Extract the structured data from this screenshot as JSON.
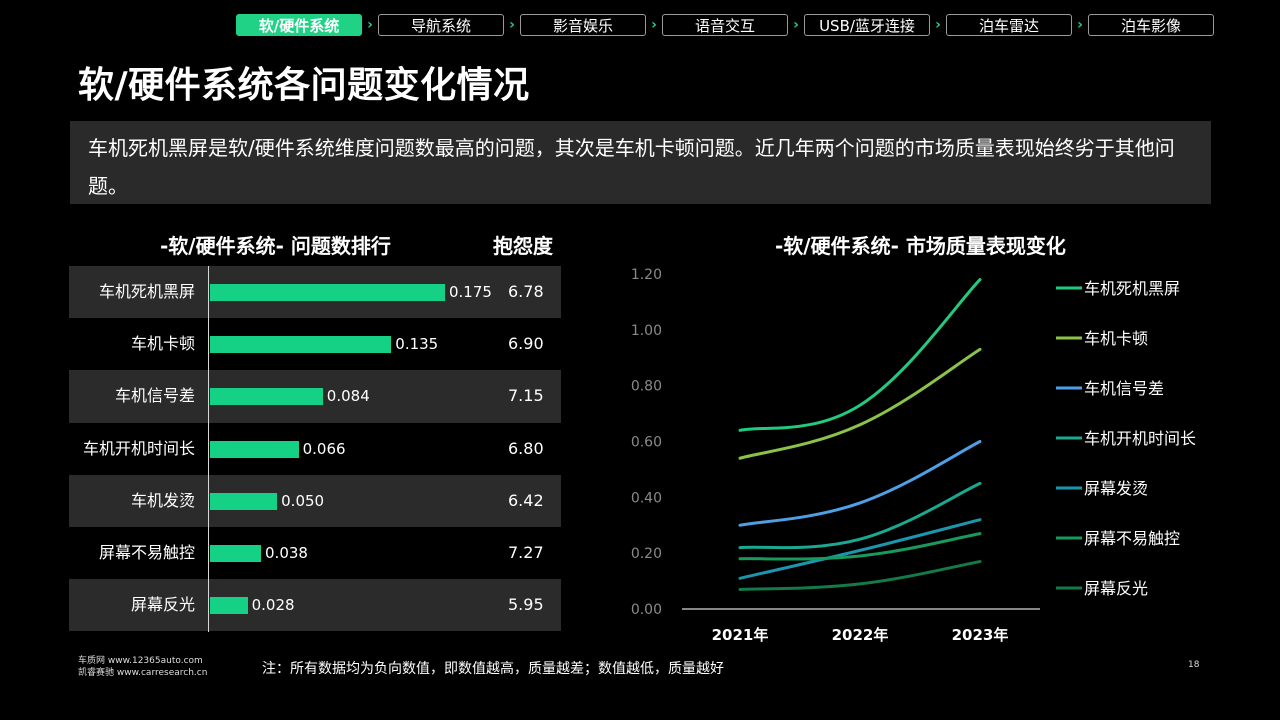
{
  "nav": {
    "tabs": [
      {
        "label": "软/硬件系统",
        "active": true
      },
      {
        "label": "导航系统",
        "active": false
      },
      {
        "label": "影音娱乐",
        "active": false
      },
      {
        "label": "语音交互",
        "active": false
      },
      {
        "label": "USB/蓝牙连接",
        "active": false
      },
      {
        "label": "泊车雷达",
        "active": false
      },
      {
        "label": "泊车影像",
        "active": false
      }
    ],
    "separator_icon": "chevron-right-icon"
  },
  "page_title": "软/硬件系统各问题变化情况",
  "summary": "车机死机黑屏是软/硬件系统维度问题数最高的问题，其次是车机卡顿问题。近几年两个问题的市场质量表现始终劣于其他问题。",
  "rank_title": "-软/硬件系统- 问题数排行",
  "complaint_header": "抱怨度",
  "line_title": "-软/硬件系统- 市场质量表现变化",
  "footer": {
    "line1": "车质网 www.12365auto.com",
    "line2": "凯睿赛驰 www.carresearch.cn",
    "note": "注：所有数据均为负向数值，即数值越高，质量越差；数值越低，质量越好",
    "page_number": "18"
  },
  "colors": {
    "accent": "#1fd285",
    "bar": "#15d186",
    "row_shade": "#2b2b2b"
  },
  "chart_data": [
    {
      "type": "bar",
      "orientation": "horizontal",
      "title": "-软/硬件系统- 问题数排行",
      "categories": [
        "车机死机黑屏",
        "车机卡顿",
        "车机信号差",
        "车机开机时间长",
        "车机发烫",
        "屏幕不易触控",
        "屏幕反光"
      ],
      "values": [
        0.175,
        0.135,
        0.084,
        0.066,
        0.05,
        0.038,
        0.028
      ],
      "value_labels": [
        "0.175",
        "0.135",
        "0.084",
        "0.066",
        "0.050",
        "0.038",
        "0.028"
      ],
      "complaint_degree": [
        "6.78",
        "6.90",
        "7.15",
        "6.80",
        "6.42",
        "7.27",
        "5.95"
      ]
    },
    {
      "type": "line",
      "title": "-软/硬件系统- 市场质量表现变化",
      "x": [
        "2021年",
        "2022年",
        "2023年"
      ],
      "yticks": [
        "0.00",
        "0.20",
        "0.40",
        "0.60",
        "0.80",
        "1.00",
        "1.20"
      ],
      "ylim": [
        0,
        1.2
      ],
      "legend_position": "right",
      "series": [
        {
          "name": "车机死机黑屏",
          "values": [
            0.64,
            0.73,
            1.18
          ],
          "color": "#22c97f"
        },
        {
          "name": "车机卡顿",
          "values": [
            0.54,
            0.66,
            0.93
          ],
          "color": "#8bc34a"
        },
        {
          "name": "车机信号差",
          "values": [
            0.3,
            0.38,
            0.6
          ],
          "color": "#4f9fe6"
        },
        {
          "name": "车机开机时间长",
          "values": [
            0.22,
            0.25,
            0.45
          ],
          "color": "#1aa890"
        },
        {
          "name": "屏幕发烫",
          "values": [
            0.11,
            0.21,
            0.32
          ],
          "color": "#1c96ad"
        },
        {
          "name": "屏幕不易触控",
          "values": [
            0.18,
            0.19,
            0.27
          ],
          "color": "#179a5c"
        },
        {
          "name": "屏幕反光",
          "values": [
            0.07,
            0.09,
            0.17
          ],
          "color": "#147a48"
        }
      ]
    }
  ]
}
